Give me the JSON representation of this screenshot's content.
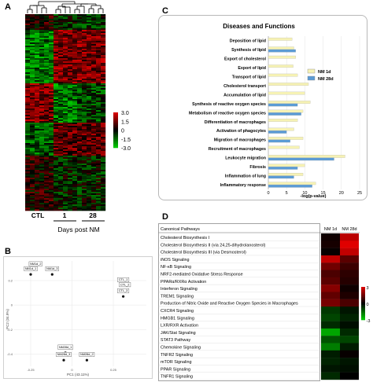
{
  "panels": {
    "a": "A",
    "b": "B",
    "c": "C",
    "d": "D"
  },
  "heatmap_a": {
    "scale_ticks": [
      "3.0",
      "1.5",
      "0",
      "-1.5",
      "-3.0"
    ],
    "column_labels": [
      "CTL",
      "1",
      "28"
    ],
    "axis_label": "Days post NM",
    "colors": {
      "high": "#e00000",
      "mid": "#000000",
      "low": "#00d000"
    }
  },
  "pca": {
    "xlabel": "PC1 (43.11%)",
    "ylabel": "PC2 (34.9%)",
    "x_ticks": [
      "-0.25",
      "0",
      "0.25"
    ],
    "y_ticks": [
      "0.2",
      "0",
      "-0.2",
      "-0.4"
    ],
    "points": [
      {
        "label": "NM1d_2",
        "x": -0.22,
        "y": 0.29
      },
      {
        "label": "NM1d_1",
        "x": -0.25,
        "y": 0.25
      },
      {
        "label": "NM1d_3",
        "x": -0.12,
        "y": 0.25
      },
      {
        "label": "CTL_1",
        "x": 0.31,
        "y": 0.16
      },
      {
        "label": "CTL_2",
        "x": 0.32,
        "y": 0.12
      },
      {
        "label": "CTL_3",
        "x": 0.31,
        "y": 0.07
      },
      {
        "label": "NM28d_1",
        "x": -0.04,
        "y": -0.39
      },
      {
        "label": "NM28d_3",
        "x": -0.05,
        "y": -0.45
      },
      {
        "label": "NM28d_2",
        "x": 0.09,
        "y": -0.45
      }
    ]
  },
  "chart_data": [
    {
      "type": "bar",
      "title": "Diseases and Functions",
      "xlabel": "-log(p-value)",
      "xlim": [
        0,
        25
      ],
      "x_ticks": [
        "0",
        "5",
        "10",
        "15",
        "20",
        "25"
      ],
      "categories": [
        "Deposition of lipid",
        "Synthesis of lipid",
        "Export of cholesterol",
        "Export of lipid",
        "Transport of lipid",
        "Cholesterol transport",
        "Accumulation of lipid",
        "Synthesis of reactive oxygen species",
        "Metabolism of reactive oxygen species",
        "Differentiation of macrophages",
        "Activation of phagocytes",
        "Migration of macrophages",
        "Recruitment of macrophages",
        "Leukocyte migration",
        "Fibrosis",
        "Inflammation of lung",
        "Inflammatory response"
      ],
      "series": [
        {
          "name": "NM 1d",
          "color": "#f6f2b4",
          "values": [
            6.5,
            7.0,
            7.5,
            6.8,
            8.0,
            11.0,
            10.0,
            11.5,
            9.5,
            8.0,
            7.0,
            9.5,
            8.5,
            21.0,
            10.0,
            9.5,
            13.0
          ]
        },
        {
          "name": "NM 28d",
          "color": "#5b9bd5",
          "values": [
            0,
            7.5,
            0,
            0,
            0,
            0,
            0,
            8.0,
            9.0,
            0,
            5.0,
            6.0,
            0,
            18.0,
            8.0,
            7.0,
            12.0
          ]
        }
      ],
      "legend": "right"
    },
    {
      "type": "heatmap",
      "title": "",
      "header": "Canonical Pathways",
      "columns": [
        "NM 1d",
        "NM 28d"
      ],
      "rows": [
        "Cholesterol Biosynthesis I",
        "Cholesterol Biosynthesis II (via 24,25-dihydrolanosterol)",
        "Cholesterol Biosynthesis III (via Desmosterol)",
        "iNOS Signaling",
        "NF-κB Signaling",
        "NRF2-mediated Oxidative Stress Response",
        "PPARα/RXRα Activation",
        "Interferon Signaling",
        "TREM1 Signaling",
        "Production of Nitric Oxide and Reactive Oxygen Species in Macrophages",
        "CXCR4 Signaling",
        "HMGB1 Signaling",
        "LXR/RXR Activation",
        "JAK/Stat Signaling",
        "STAT3 Pathway",
        "Chemokine Signaling",
        "TNFR2 Signaling",
        "mTOR Signaling",
        "PPAR Signaling",
        "TNFR1 Signaling"
      ],
      "values": [
        [
          0.2,
          2.5
        ],
        [
          0.3,
          3.0
        ],
        [
          0.1,
          2.6
        ],
        [
          2.6,
          1.2
        ],
        [
          1.5,
          0.8
        ],
        [
          1.0,
          0.6
        ],
        [
          1.2,
          0.5
        ],
        [
          1.8,
          0.2
        ],
        [
          1.3,
          0.4
        ],
        [
          1.6,
          1.0
        ],
        [
          -0.8,
          -0.3
        ],
        [
          -1.0,
          -0.5
        ],
        [
          -0.6,
          -0.2
        ],
        [
          -2.4,
          -0.6
        ],
        [
          -1.2,
          -1.0
        ],
        [
          -1.8,
          -0.4
        ],
        [
          -0.4,
          0.1
        ],
        [
          -0.5,
          -0.3
        ],
        [
          -0.3,
          -0.2
        ],
        [
          -0.6,
          0.0
        ]
      ],
      "scale_ticks": [
        "3",
        "0",
        "-3"
      ],
      "colors": {
        "high": "#e00000",
        "mid": "#000000",
        "low": "#00d000"
      }
    }
  ]
}
